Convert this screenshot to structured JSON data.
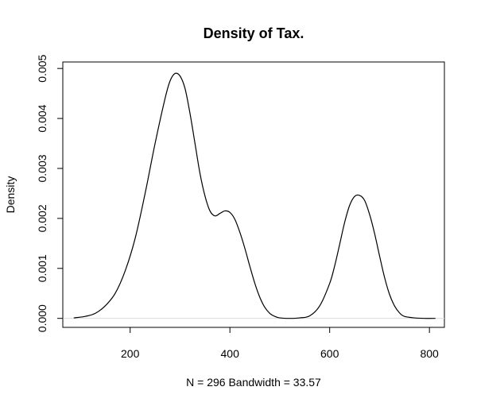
{
  "chart_data": {
    "type": "line",
    "title": "Density of Tax.",
    "xlabel": "N = 296   Bandwidth = 33.57",
    "ylabel": "Density",
    "xlim": [
      65,
      830
    ],
    "ylim": [
      -0.00018,
      0.00513
    ],
    "grid": false,
    "legend": "none",
    "x_ticks": [
      200,
      400,
      600,
      800
    ],
    "x_tick_labels": [
      "200",
      "400",
      "600",
      "800"
    ],
    "y_ticks": [
      0.0,
      0.001,
      0.002,
      0.003,
      0.004,
      0.005
    ],
    "y_tick_labels": [
      "0.000",
      "0.001",
      "0.002",
      "0.003",
      "0.004",
      "0.005"
    ],
    "baseline_color": "#d9d9d9",
    "line_color": "#000000",
    "series": [
      {
        "x": [
          87,
          110,
          130,
          150,
          170,
          190,
          210,
          230,
          250,
          270,
          280,
          290,
          300,
          310,
          320,
          330,
          340,
          350,
          360,
          370,
          380,
          390,
          400,
          410,
          420,
          430,
          440,
          450,
          460,
          470,
          480,
          490,
          500,
          520,
          540,
          560,
          580,
          600,
          610,
          620,
          630,
          640,
          650,
          660,
          670,
          680,
          690,
          700,
          710,
          720,
          730,
          740,
          750,
          770,
          790,
          812
        ],
        "y": [
          1e-05,
          4e-05,
          0.0001,
          0.00025,
          0.0005,
          0.00095,
          0.0016,
          0.0025,
          0.0035,
          0.0044,
          0.00475,
          0.0049,
          0.00485,
          0.0046,
          0.0041,
          0.0035,
          0.0029,
          0.00245,
          0.00215,
          0.00205,
          0.0021,
          0.00215,
          0.00212,
          0.00198,
          0.00172,
          0.0014,
          0.00104,
          0.0007,
          0.00042,
          0.00022,
          0.0001,
          4e-05,
          1e-05,
          0.0,
          1e-05,
          5e-05,
          0.00025,
          0.0007,
          0.00105,
          0.00148,
          0.00192,
          0.00226,
          0.00244,
          0.00246,
          0.00236,
          0.00208,
          0.0017,
          0.00125,
          0.00082,
          0.00048,
          0.00025,
          0.00011,
          4e-05,
          1e-05,
          0.0,
          0.0
        ]
      }
    ]
  }
}
